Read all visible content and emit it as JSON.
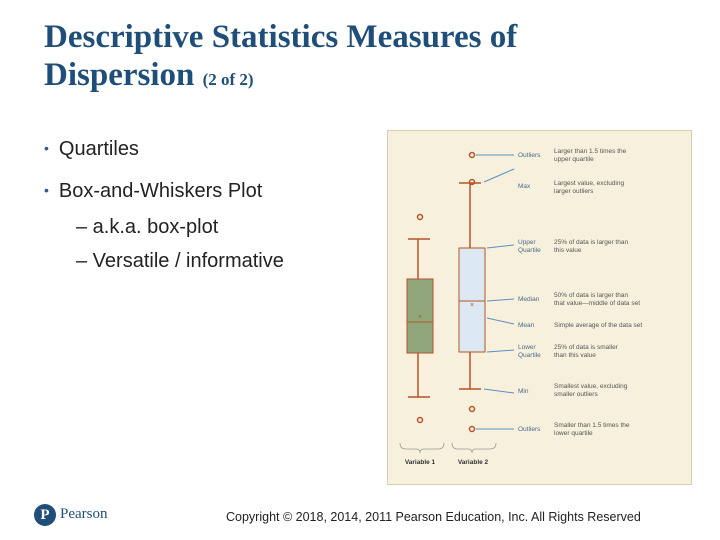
{
  "slide": {
    "title_main": "Descriptive Statistics Measures of",
    "title_line2": "Dispersion",
    "title_sub": "(2 of 2)",
    "bullets": [
      {
        "text": "Quartiles"
      },
      {
        "text": "Box-and-Whiskers Plot"
      }
    ],
    "sub_bullets": [
      {
        "text": "– a.k.a. box-plot"
      },
      {
        "text": "– Versatile / informative"
      }
    ]
  },
  "figure": {
    "variable1_label": "Variable 1",
    "variable2_label": "Variable 2",
    "legend": [
      {
        "term": [
          "Outliers"
        ],
        "desc": [
          "Larger than 1.5 times the",
          "upper quartile"
        ]
      },
      {
        "term": [
          "Max"
        ],
        "desc": [
          "Largest value, excluding",
          "larger outliers"
        ]
      },
      {
        "term": [
          "Upper",
          "Quartile"
        ],
        "desc": [
          "25% of data is larger than",
          "this value"
        ]
      },
      {
        "term": [
          "Median"
        ],
        "desc": [
          "50% of data is larger than",
          "that value—middle of data set"
        ]
      },
      {
        "term": [
          "Mean"
        ],
        "desc": [
          "Simple average of the data set"
        ]
      },
      {
        "term": [
          "Lower",
          "Quartile"
        ],
        "desc": [
          "25% of data is smaller",
          "than this value"
        ]
      },
      {
        "term": [
          "Min"
        ],
        "desc": [
          "Smallest value, excluding",
          "smaller outliers"
        ]
      },
      {
        "term": [
          "Outliers"
        ],
        "desc": [
          "Smaller than 1.5 times the",
          "lower quartile"
        ]
      }
    ],
    "colors": {
      "box1": "#8fa77a",
      "box2": "#dce8f2",
      "line": "#b5542a",
      "arrow": "#5b8fc4"
    }
  },
  "footer": {
    "logo_letter": "P",
    "logo_text": "Pearson",
    "copyright": "Copyright © 2018, 2014, 2011 Pearson Education, Inc. All Rights Reserved"
  }
}
